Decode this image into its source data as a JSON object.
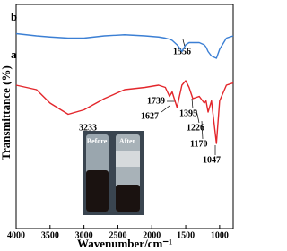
{
  "chart_data": {
    "type": "line",
    "x_label": "Wavenumber/cm⁻¹",
    "y_label": "Transmittance (%)",
    "xlim": [
      4000,
      800
    ],
    "ylim": [
      0,
      100
    ],
    "xticks": [
      4000,
      3500,
      3000,
      2500,
      2000,
      1500,
      1000
    ],
    "x": [
      4000,
      3700,
      3500,
      3233,
      3000,
      2700,
      2400,
      2100,
      1900,
      1800,
      1739,
      1700,
      1627,
      1600,
      1556,
      1500,
      1450,
      1395,
      1300,
      1226,
      1200,
      1170,
      1120,
      1047,
      1000,
      900,
      800
    ],
    "series": [
      {
        "name": "a",
        "color": "#e3262b",
        "values": [
          64,
          62,
          56,
          51,
          53,
          58,
          62,
          63,
          64,
          63,
          59,
          61,
          54,
          58,
          64,
          66,
          63,
          58,
          59,
          56,
          57,
          52,
          57,
          38,
          57,
          64,
          65
        ]
      },
      {
        "name": "b",
        "color": "#3b7fd4",
        "values": [
          87,
          86,
          85.5,
          85,
          85,
          86,
          86.5,
          86,
          85.5,
          85,
          84.5,
          84,
          82,
          81,
          79,
          82,
          83,
          83,
          83,
          82,
          81,
          79,
          77,
          76,
          80,
          85,
          86
        ]
      }
    ],
    "peak_labels": [
      "3233",
      "1739",
      "1627",
      "1395",
      "1226",
      "1170",
      "1047",
      "1556"
    ],
    "inset_labels": [
      "Before",
      "After"
    ]
  }
}
